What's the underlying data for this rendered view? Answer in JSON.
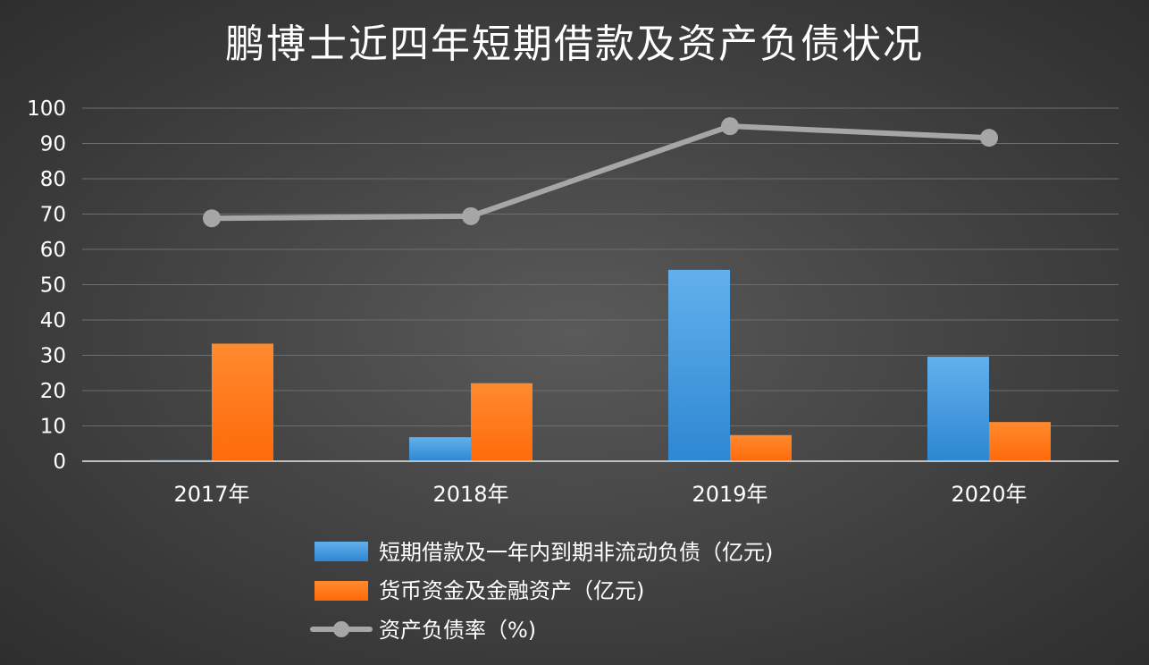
{
  "chart_data": {
    "type": "bar",
    "title": "鹏博士近四年短期借款及资产负债状况",
    "categories": [
      "2017年",
      "2018年",
      "2019年",
      "2020年"
    ],
    "ylim": [
      0,
      100
    ],
    "yticks": [
      "0",
      "10",
      "20",
      "30",
      "40",
      "50",
      "60",
      "70",
      "80",
      "90",
      "100"
    ],
    "grid": true,
    "legend_position": "bottom",
    "series": [
      {
        "name": "短期借款及一年内到期非流动负债（亿元)",
        "type": "bar",
        "color": "#4a9ee0",
        "values": [
          0.3,
          6.8,
          54.2,
          29.6
        ]
      },
      {
        "name": "货币资金及金融资产（亿元)",
        "type": "bar",
        "color": "#ff7418",
        "values": [
          33.3,
          22.1,
          7.4,
          11.1
        ]
      },
      {
        "name": "资产负债率（%)",
        "type": "line",
        "color": "#a6a6a6",
        "values": [
          68.8,
          69.4,
          94.9,
          91.6
        ]
      }
    ]
  }
}
